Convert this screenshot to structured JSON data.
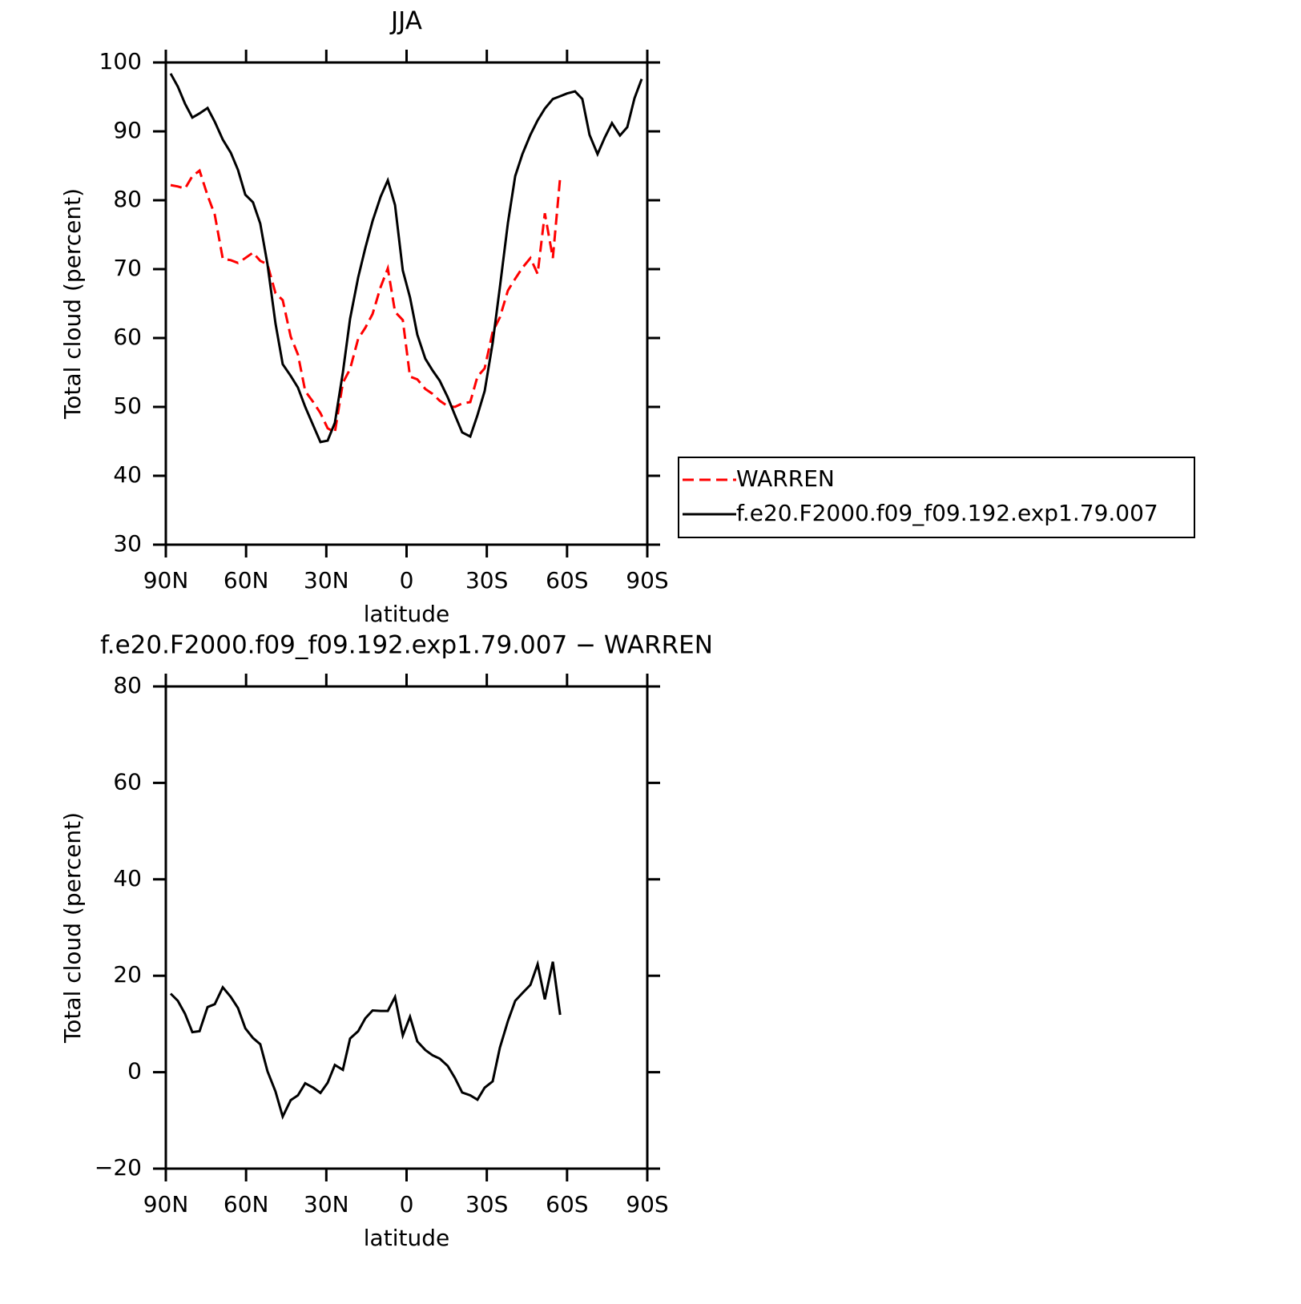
{
  "chart_data": [
    {
      "type": "line",
      "title": "JJA",
      "xlabel": "latitude",
      "ylabel": "Total cloud (percent)",
      "x": [
        88.2,
        85.5,
        82.8,
        80.1,
        77.4,
        74.4,
        71.7,
        68.7,
        65.7,
        63.0,
        60.3,
        57.4,
        54.7,
        52.0,
        49.0,
        46.3,
        43.3,
        40.6,
        37.9,
        34.9,
        32.2,
        29.5,
        26.8,
        23.8,
        21.1,
        18.1,
        15.4,
        12.7,
        9.7,
        7.0,
        4.3,
        1.4,
        -1.3,
        -4.0,
        -7.0,
        -9.7,
        -12.4,
        -15.4,
        -18.1,
        -20.8,
        -23.8,
        -26.5,
        -29.2,
        -32.2,
        -34.9,
        -37.9,
        -40.6,
        -43.3,
        -46.3,
        -49.0,
        -51.7,
        -54.7,
        -57.4,
        -60.0,
        -63.0,
        -65.7,
        -68.4,
        -71.4,
        -74.1,
        -76.8,
        -79.8,
        -82.5,
        -85.2,
        -87.9
      ],
      "series": [
        {
          "name": "WARREN",
          "color": "#ff0000",
          "dash": true,
          "values": [
            82.2,
            82,
            81.7,
            83.5,
            84.3,
            80.7,
            77.9,
            71.5,
            71.3,
            70.9,
            71.6,
            72.4,
            71.2,
            70.7,
            66.5,
            65.5,
            60.2,
            57.6,
            52.3,
            50.7,
            49.1,
            46.9,
            46.3,
            53.5,
            55.5,
            59.9,
            61.5,
            63.5,
            67.4,
            70.1,
            63.8,
            62.6,
            54.4,
            54,
            52.6,
            51.9,
            50.9,
            50.1,
            50,
            50.5,
            50.7,
            54.4,
            55.6,
            60.9,
            63,
            66.9,
            68.6,
            70.2,
            71.6,
            69.3,
            78.1,
            71.6,
            83.3,
            null,
            null,
            null,
            null,
            null,
            null,
            null,
            null,
            null,
            null,
            null
          ]
        },
        {
          "name": "f.e20.F2000.f09_f09.192.exp1.79.007",
          "color": "#000000",
          "dash": false,
          "values": [
            98.4,
            96.5,
            94,
            92,
            92.6,
            93.4,
            91.4,
            88.8,
            86.9,
            84.4,
            80.8,
            79.7,
            76.6,
            70.7,
            62.1,
            56.2,
            54.5,
            52.8,
            50,
            47.3,
            44.9,
            45.1,
            47.7,
            55,
            62.8,
            68.8,
            73.1,
            77,
            80.5,
            82.9,
            79.3,
            69.8,
            65.9,
            60.5,
            57,
            55.3,
            53.8,
            51.4,
            48.8,
            46.3,
            45.7,
            48.8,
            52.3,
            59.3,
            67.4,
            76.7,
            83.5,
            86.7,
            89.5,
            91.6,
            93.3,
            94.7,
            95.1,
            95.5,
            95.8,
            94.7,
            89.5,
            86.7,
            89.1,
            91.2,
            89.4,
            90.6,
            94.8,
            97.6
          ]
        }
      ],
      "xlim": [
        90,
        -90
      ],
      "xticks": [
        {
          "value": 90,
          "label": "90N"
        },
        {
          "value": 60,
          "label": "60N"
        },
        {
          "value": 30,
          "label": "30N"
        },
        0,
        {
          "value": -30,
          "label": "30S"
        },
        {
          "value": -60,
          "label": "60S"
        },
        {
          "value": -90,
          "label": "90S"
        }
      ],
      "ylim": [
        30,
        100
      ],
      "yticks": [
        30,
        40,
        50,
        60,
        70,
        80,
        90,
        100
      ],
      "legend": "right"
    },
    {
      "type": "line",
      "title": "f.e20.F2000.f09_f09.192.exp1.79.007 − WARREN",
      "xlabel": "latitude",
      "ylabel": "Total cloud (percent)",
      "x": [
        88.2,
        85.5,
        82.8,
        80.1,
        77.4,
        74.4,
        71.7,
        68.7,
        65.7,
        63.0,
        60.3,
        57.4,
        54.7,
        52.0,
        49.0,
        46.3,
        43.3,
        40.6,
        37.9,
        34.9,
        32.2,
        29.5,
        26.8,
        23.8,
        21.1,
        18.1,
        15.4,
        12.7,
        9.7,
        7.0,
        4.3,
        1.4,
        -1.3,
        -4.0,
        -7.0,
        -9.7,
        -12.4,
        -15.4,
        -18.1,
        -20.8,
        -23.8,
        -26.5,
        -29.2,
        -32.2,
        -34.9,
        -37.9,
        -40.6,
        -43.3,
        -46.3,
        -49.0,
        -51.7,
        -54.7,
        -57.4
      ],
      "series": [
        {
          "color": "#000000",
          "dash": false,
          "values": [
            16.3,
            14.8,
            12.1,
            8.3,
            8.5,
            13.5,
            14.1,
            17.6,
            15.6,
            13.3,
            9.1,
            7.1,
            5.8,
            0.2,
            -4,
            -9.2,
            -5.8,
            -4.8,
            -2.3,
            -3.2,
            -4.3,
            -2.2,
            1.5,
            0.5,
            7,
            8.5,
            11.2,
            12.8,
            12.7,
            12.7,
            15.6,
            7.6,
            11.5,
            6.4,
            4.6,
            3.5,
            2.8,
            1.3,
            -1.2,
            -4.2,
            -4.8,
            -5.7,
            -3.2,
            -1.9,
            5.1,
            10.6,
            14.8,
            16.4,
            18.1,
            22.4,
            15.1,
            22.9,
            11.9
          ]
        }
      ],
      "xlim": [
        90,
        -90
      ],
      "xticks": [
        {
          "value": 90,
          "label": "90N"
        },
        {
          "value": 60,
          "label": "60N"
        },
        {
          "value": 30,
          "label": "30N"
        },
        0,
        {
          "value": -30,
          "label": "30S"
        },
        {
          "value": -60,
          "label": "60S"
        },
        {
          "value": -90,
          "label": "90S"
        }
      ],
      "ylim": [
        -20,
        80
      ],
      "yticks": [
        {
          "value": -20,
          "label": "−20"
        },
        0,
        20,
        40,
        60,
        80
      ]
    }
  ]
}
